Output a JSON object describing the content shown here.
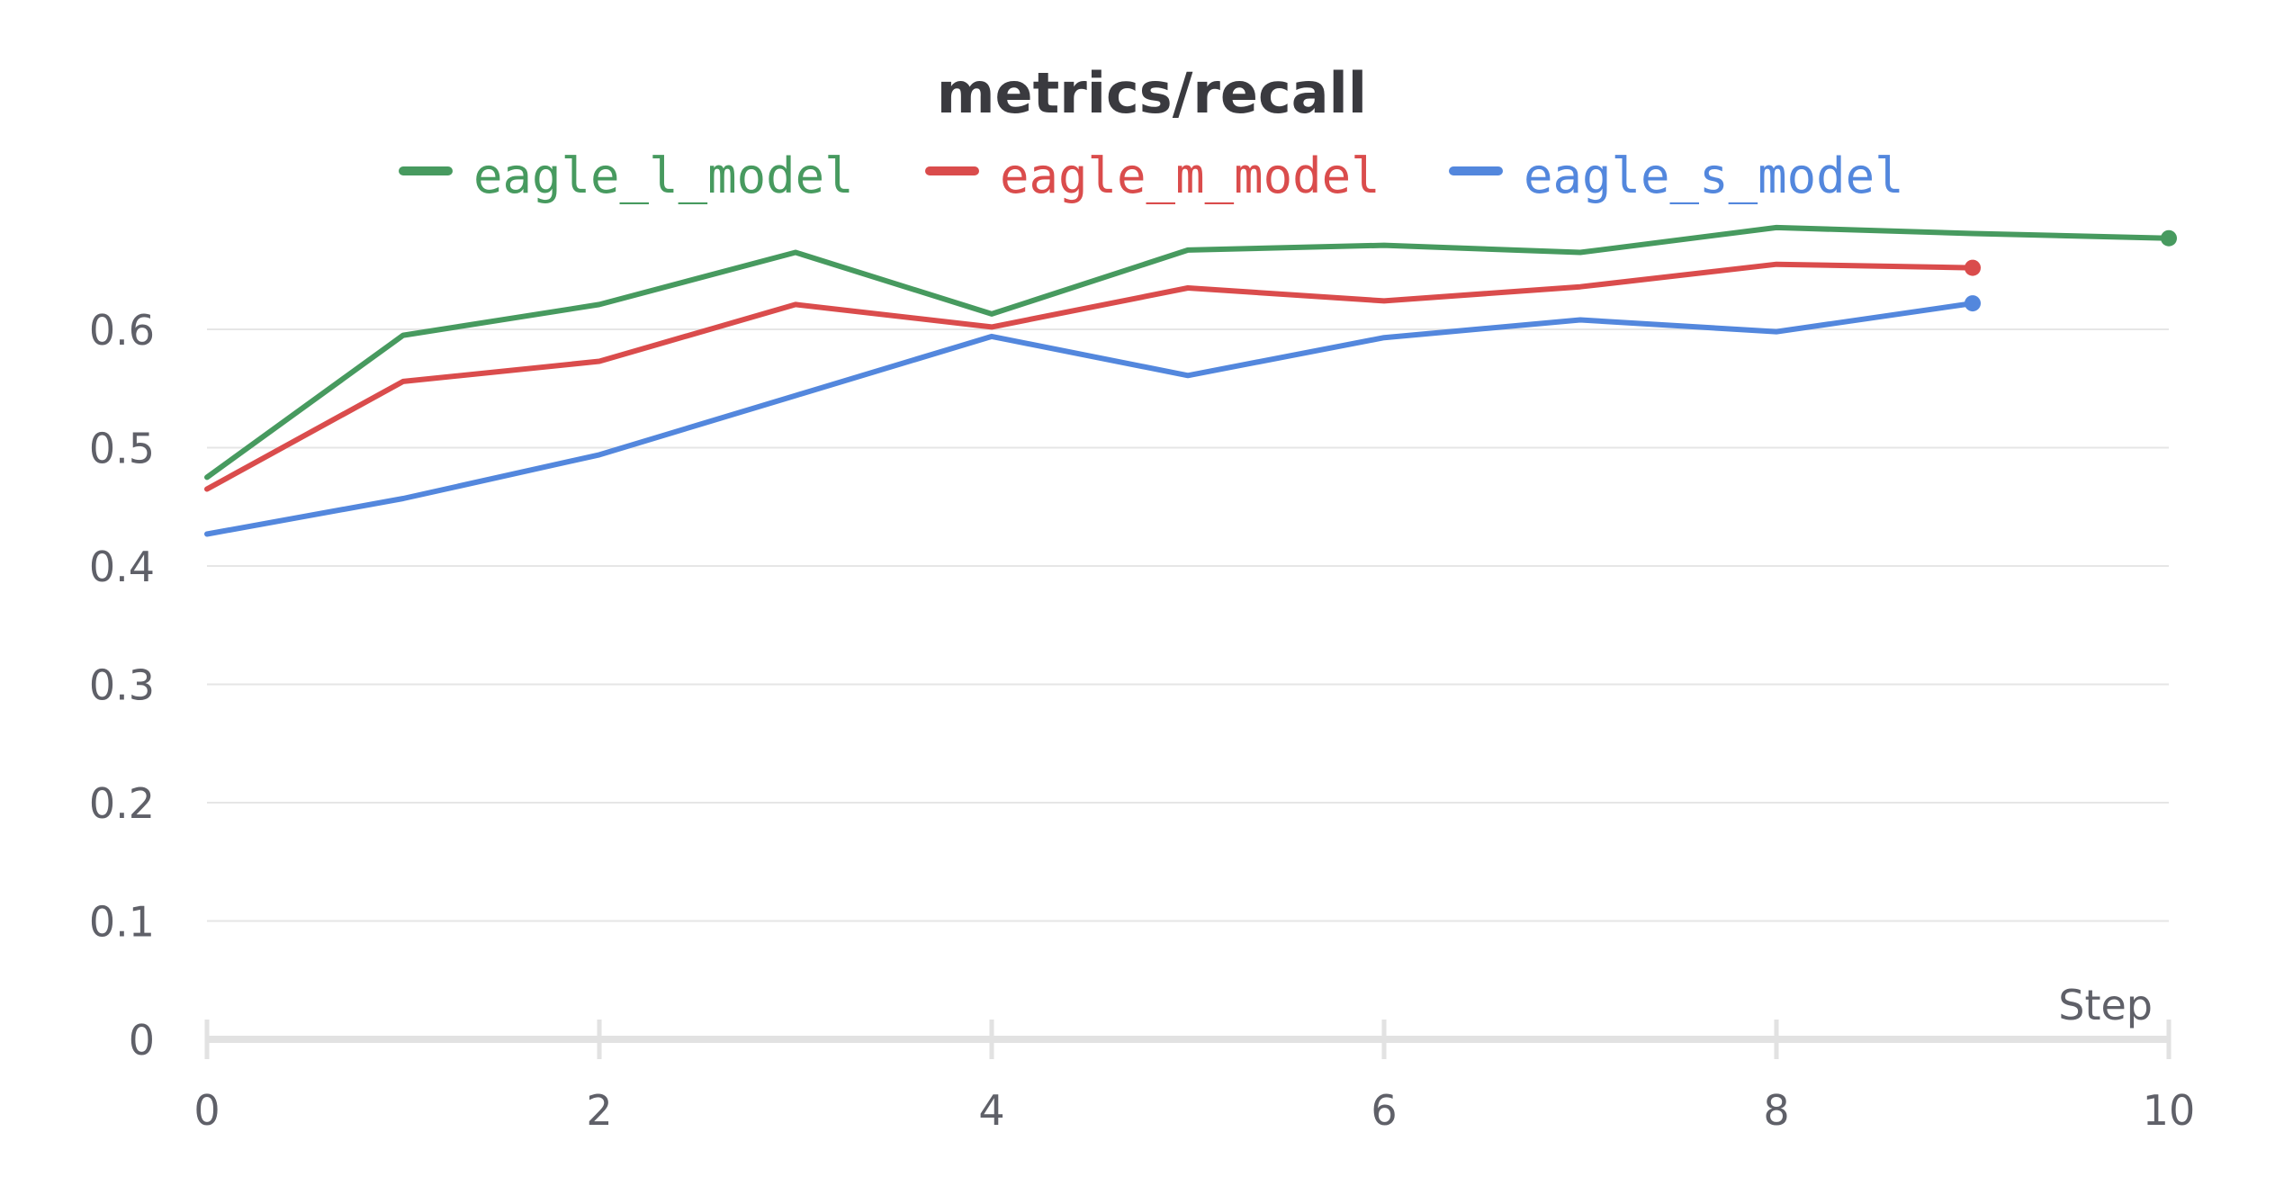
{
  "chart_data": {
    "type": "line",
    "title": "metrics/recall",
    "xlabel": "Step",
    "ylabel": "",
    "xlim": [
      0,
      10
    ],
    "ylim": [
      0,
      0.7
    ],
    "x_ticks": [
      "0",
      "2",
      "4",
      "6",
      "8",
      "10"
    ],
    "y_ticks": [
      "0",
      "0.1",
      "0.2",
      "0.3",
      "0.4",
      "0.5",
      "0.6"
    ],
    "grid": true,
    "legend_position": "top-center",
    "series": [
      {
        "name": "eagle_l_model",
        "color": "#479a5f",
        "x": [
          0,
          1,
          2,
          3,
          4,
          5,
          6,
          7,
          8,
          9,
          10
        ],
        "values": [
          0.475,
          0.595,
          0.621,
          0.665,
          0.613,
          0.667,
          0.671,
          0.665,
          0.686,
          0.681,
          0.677
        ]
      },
      {
        "name": "eagle_m_model",
        "color": "#da4c4c",
        "x": [
          0,
          1,
          2,
          3,
          4,
          5,
          6,
          7,
          8,
          9
        ],
        "values": [
          0.465,
          0.556,
          0.573,
          0.621,
          0.602,
          0.635,
          0.624,
          0.636,
          0.655,
          0.652
        ]
      },
      {
        "name": "eagle_s_model",
        "color": "#5387dd",
        "x": [
          0,
          1,
          2,
          3,
          4,
          5,
          6,
          7,
          8,
          9
        ],
        "values": [
          0.427,
          0.457,
          0.494,
          0.544,
          0.594,
          0.561,
          0.593,
          0.608,
          0.598,
          0.622
        ]
      }
    ]
  }
}
